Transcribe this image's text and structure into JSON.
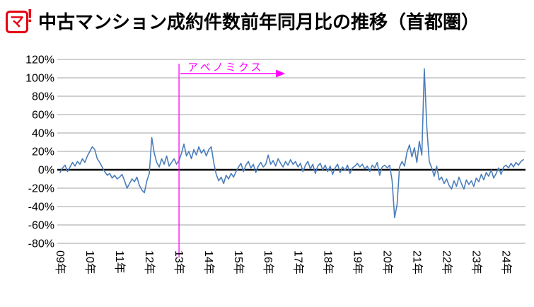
{
  "header": {
    "logo_text": "マ",
    "logo_bang": "!",
    "title": "中古マンション成約件数前年同月比の推移（首都圏）"
  },
  "chart_data": {
    "type": "line",
    "title": "中古マンション成約件数前年同月比の推移（首都圏）",
    "unit": "%",
    "grid": true,
    "legend": "none",
    "ylim": [
      -80,
      120
    ],
    "ytick_step": 20,
    "y_ticks": [
      "120%",
      "100%",
      "80%",
      "60%",
      "40%",
      "20%",
      "0%",
      "-20%",
      "-40%",
      "-60%",
      "-80%"
    ],
    "x_ticks": [
      "09年",
      "10年",
      "11年",
      "12年",
      "13年",
      "14年",
      "15年",
      "16年",
      "17年",
      "18年",
      "19年",
      "20年",
      "21年",
      "22年",
      "23年",
      "24年"
    ],
    "x_start": "2009-01",
    "x_end": "2024-08",
    "zero_line_color": "#000000",
    "grid_color": "#b3b3b3",
    "annotation": {
      "text": "アベノミクス",
      "color": "#ff00ff",
      "at_month": "2013-01",
      "month_index": 48,
      "x_label": "13年"
    },
    "series": [
      {
        "name": "前年同月比",
        "color": "#4a7ebb",
        "values": [
          -3,
          2,
          5,
          -2,
          3,
          8,
          4,
          9,
          6,
          12,
          8,
          15,
          20,
          25,
          22,
          12,
          8,
          3,
          -2,
          -6,
          -4,
          -9,
          -6,
          -10,
          -8,
          -5,
          -12,
          -20,
          -15,
          -10,
          -13,
          -8,
          -17,
          -22,
          -25,
          -12,
          -4,
          35,
          18,
          8,
          3,
          12,
          6,
          15,
          4,
          8,
          12,
          6,
          10,
          18,
          28,
          15,
          20,
          12,
          22,
          16,
          25,
          18,
          22,
          15,
          22,
          25,
          8,
          -5,
          -12,
          -8,
          -15,
          -6,
          -10,
          -4,
          -8,
          -2,
          3,
          7,
          -2,
          5,
          9,
          2,
          6,
          -3,
          4,
          8,
          3,
          6,
          16,
          6,
          10,
          4,
          12,
          7,
          3,
          9,
          5,
          11,
          6,
          9,
          3,
          7,
          -2,
          5,
          9,
          1,
          6,
          -4,
          4,
          7,
          0,
          5,
          -2,
          4,
          -5,
          2,
          6,
          -3,
          3,
          -1,
          5,
          -4,
          2,
          4,
          7,
          3,
          6,
          1,
          4,
          -2,
          5,
          2,
          8,
          -6,
          3,
          5,
          2,
          5,
          -12,
          -52,
          -38,
          3,
          9,
          4,
          19,
          27,
          14,
          24,
          8,
          31,
          16,
          110,
          47,
          9,
          2,
          -7,
          4,
          -11,
          -8,
          -15,
          -10,
          -17,
          -21,
          -12,
          -18,
          -8,
          -15,
          -21,
          -11,
          -16,
          -12,
          -18,
          -9,
          -13,
          -5,
          -11,
          -3,
          -7,
          0,
          -9,
          -4,
          2,
          -5,
          3,
          5,
          2,
          7,
          3,
          8,
          5,
          9,
          11
        ]
      }
    ]
  }
}
